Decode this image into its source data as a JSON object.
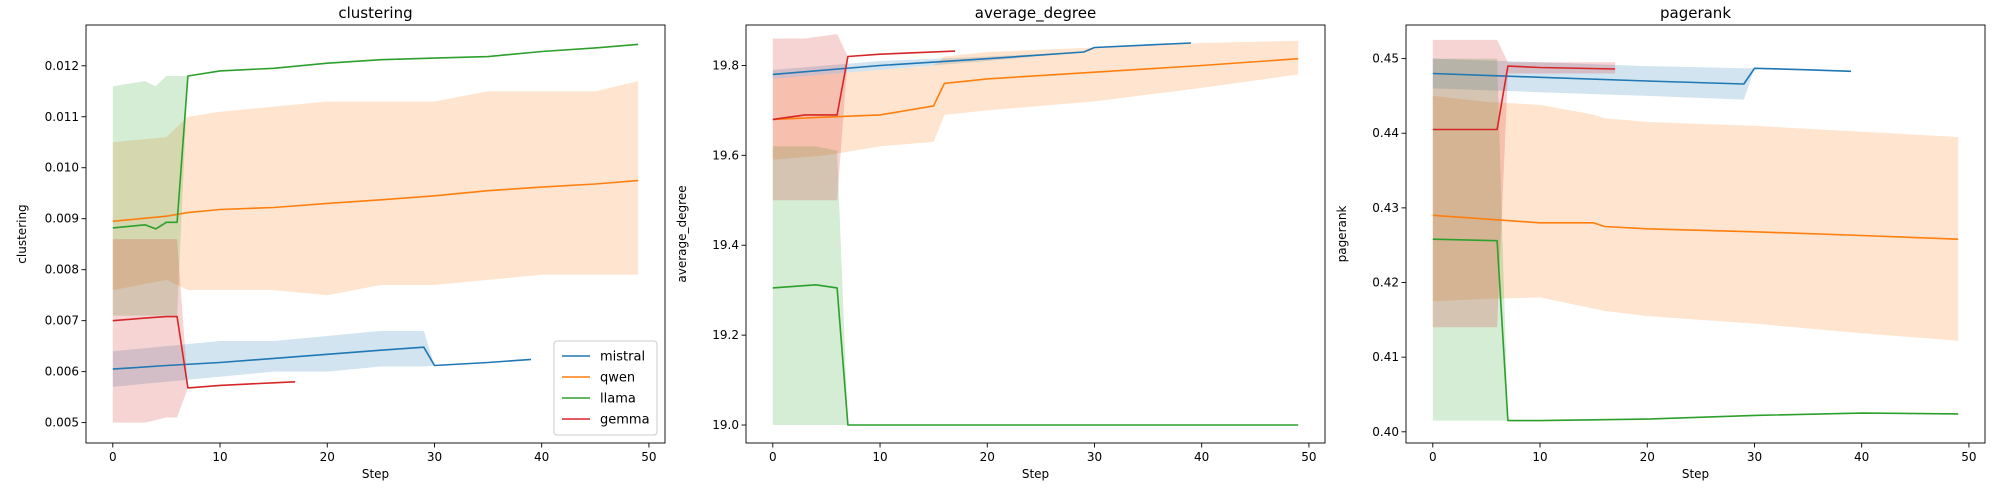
{
  "chart_data": [
    {
      "type": "line",
      "title": "clustering",
      "xlabel": "Step",
      "ylabel": "clustering",
      "xlim": [
        -2.5,
        51.5
      ],
      "ylim": [
        0.0046,
        0.0128
      ],
      "xticks": [
        0,
        10,
        20,
        30,
        40,
        50
      ],
      "yticks": [
        0.005,
        0.006,
        0.007,
        0.008,
        0.009,
        0.01,
        0.011,
        0.012
      ],
      "ytick_labels": [
        "0.005",
        "0.006",
        "0.007",
        "0.008",
        "0.009",
        "0.010",
        "0.011",
        "0.012"
      ],
      "legend": {
        "position": "lower right",
        "entries": [
          "mistral",
          "qwen",
          "llama",
          "gemma"
        ]
      },
      "series": [
        {
          "name": "mistral",
          "color": "#1f77b4",
          "x": [
            0,
            5,
            10,
            15,
            20,
            25,
            29,
            30,
            35,
            39
          ],
          "mean": [
            0.00605,
            0.00612,
            0.00618,
            0.00626,
            0.00634,
            0.00642,
            0.00648,
            0.00612,
            0.00618,
            0.00624
          ],
          "lower": [
            0.0057,
            0.0058,
            0.0059,
            0.006,
            0.006,
            0.0061,
            0.0061,
            0.00612,
            0.00618,
            0.00624
          ],
          "upper": [
            0.0064,
            0.0065,
            0.0066,
            0.0066,
            0.0067,
            0.0068,
            0.0068,
            0.00612,
            0.00618,
            0.00624
          ]
        },
        {
          "name": "qwen",
          "color": "#ff7f0e",
          "x": [
            0,
            5,
            7,
            10,
            15,
            20,
            25,
            30,
            35,
            40,
            45,
            49
          ],
          "mean": [
            0.00895,
            0.00905,
            0.00912,
            0.00918,
            0.00922,
            0.0093,
            0.00937,
            0.00945,
            0.00955,
            0.00962,
            0.00968,
            0.00975
          ],
          "lower": [
            0.0076,
            0.0078,
            0.0076,
            0.0076,
            0.0076,
            0.0075,
            0.0077,
            0.0077,
            0.0078,
            0.0079,
            0.0079,
            0.0079
          ],
          "upper": [
            0.0105,
            0.0106,
            0.011,
            0.0111,
            0.0112,
            0.0113,
            0.0113,
            0.0113,
            0.0115,
            0.0115,
            0.0115,
            0.0117
          ]
        },
        {
          "name": "llama",
          "color": "#2ca02c",
          "x": [
            0,
            3,
            4,
            5,
            6,
            7,
            10,
            15,
            20,
            25,
            30,
            35,
            40,
            45,
            49
          ],
          "mean": [
            0.00882,
            0.00888,
            0.0088,
            0.00893,
            0.00893,
            0.0118,
            0.0119,
            0.01195,
            0.01205,
            0.01212,
            0.01215,
            0.01218,
            0.01228,
            0.01235,
            0.01242
          ],
          "lower": [
            0.0071,
            0.0071,
            0.0071,
            0.0071,
            0.0071,
            0.0118,
            0.0119,
            0.01195,
            0.01205,
            0.01212,
            0.01215,
            0.01218,
            0.01228,
            0.01235,
            0.01242
          ],
          "upper": [
            0.0116,
            0.0117,
            0.0116,
            0.0118,
            0.0118,
            0.0118,
            0.0119,
            0.01195,
            0.01205,
            0.01212,
            0.01215,
            0.01218,
            0.01228,
            0.01235,
            0.01242
          ]
        },
        {
          "name": "gemma",
          "color": "#d62728",
          "x": [
            0,
            3,
            5,
            6,
            7,
            10,
            15,
            17
          ],
          "mean": [
            0.007,
            0.00705,
            0.00708,
            0.00708,
            0.00568,
            0.00573,
            0.00578,
            0.0058
          ],
          "lower": [
            0.005,
            0.005,
            0.0051,
            0.0051,
            0.00568,
            0.00573,
            0.00578,
            0.0058
          ],
          "upper": [
            0.0086,
            0.0086,
            0.0086,
            0.0086,
            0.00568,
            0.00573,
            0.00578,
            0.0058
          ]
        }
      ]
    },
    {
      "type": "line",
      "title": "average_degree",
      "xlabel": "Step",
      "ylabel": "average_degree",
      "xlim": [
        -2.5,
        51.5
      ],
      "ylim": [
        18.96,
        19.89
      ],
      "xticks": [
        0,
        10,
        20,
        30,
        40,
        50
      ],
      "yticks": [
        19.0,
        19.2,
        19.4,
        19.6,
        19.8
      ],
      "ytick_labels": [
        "19.0",
        "19.2",
        "19.4",
        "19.6",
        "19.8"
      ],
      "series": [
        {
          "name": "mistral",
          "color": "#1f77b4",
          "x": [
            0,
            10,
            20,
            29,
            30,
            39
          ],
          "mean": [
            19.78,
            19.8,
            19.815,
            19.83,
            19.84,
            19.85
          ],
          "lower": [
            19.77,
            19.79,
            19.81,
            19.83,
            19.84,
            19.85
          ],
          "upper": [
            19.79,
            19.81,
            19.82,
            19.83,
            19.84,
            19.85
          ]
        },
        {
          "name": "qwen",
          "color": "#ff7f0e",
          "x": [
            0,
            5,
            10,
            15,
            16,
            20,
            30,
            40,
            49
          ],
          "mean": [
            19.68,
            19.685,
            19.69,
            19.71,
            19.76,
            19.77,
            19.785,
            19.8,
            19.815
          ],
          "lower": [
            19.59,
            19.6,
            19.62,
            19.63,
            19.69,
            19.7,
            19.72,
            19.75,
            19.78
          ],
          "upper": [
            19.77,
            19.78,
            19.79,
            19.8,
            19.82,
            19.83,
            19.84,
            19.85,
            19.855
          ]
        },
        {
          "name": "llama",
          "color": "#2ca02c",
          "x": [
            0,
            4,
            6,
            7,
            10,
            20,
            30,
            40,
            49
          ],
          "mean": [
            19.305,
            19.312,
            19.305,
            19.0,
            19.0,
            19.0,
            19.0,
            19.0,
            19.0
          ],
          "lower": [
            19.0,
            19.0,
            19.0,
            19.0,
            19.0,
            19.0,
            19.0,
            19.0,
            19.0
          ],
          "upper": [
            19.62,
            19.62,
            19.61,
            19.0,
            19.0,
            19.0,
            19.0,
            19.0,
            19.0
          ]
        },
        {
          "name": "gemma",
          "color": "#d62728",
          "x": [
            0,
            3,
            6,
            7,
            10,
            17
          ],
          "mean": [
            19.68,
            19.69,
            19.69,
            19.82,
            19.825,
            19.832
          ],
          "lower": [
            19.5,
            19.5,
            19.5,
            19.82,
            19.825,
            19.832
          ],
          "upper": [
            19.86,
            19.86,
            19.87,
            19.82,
            19.825,
            19.832
          ]
        }
      ]
    },
    {
      "type": "line",
      "title": "pagerank",
      "xlabel": "Step",
      "ylabel": "pagerank",
      "xlim": [
        -2.5,
        51.5
      ],
      "ylim": [
        0.3985,
        0.4545
      ],
      "xticks": [
        0,
        10,
        20,
        30,
        40,
        50
      ],
      "yticks": [
        0.4,
        0.41,
        0.42,
        0.43,
        0.44,
        0.45
      ],
      "ytick_labels": [
        "0.40",
        "0.41",
        "0.42",
        "0.43",
        "0.44",
        "0.45"
      ],
      "series": [
        {
          "name": "mistral",
          "color": "#1f77b4",
          "x": [
            0,
            10,
            20,
            29,
            30,
            35,
            39
          ],
          "mean": [
            0.448,
            0.4475,
            0.447,
            0.4466,
            0.4487,
            0.4485,
            0.4483
          ],
          "lower": [
            0.446,
            0.4455,
            0.445,
            0.4445,
            0.4487,
            0.4485,
            0.4483
          ],
          "upper": [
            0.45,
            0.4495,
            0.449,
            0.4487,
            0.4487,
            0.4485,
            0.4483
          ]
        },
        {
          "name": "qwen",
          "color": "#ff7f0e",
          "x": [
            0,
            5,
            10,
            15,
            16,
            20,
            30,
            40,
            49
          ],
          "mean": [
            0.429,
            0.4285,
            0.428,
            0.428,
            0.4275,
            0.4272,
            0.4268,
            0.4263,
            0.4258
          ],
          "lower": [
            0.4175,
            0.4178,
            0.418,
            0.4165,
            0.4162,
            0.4155,
            0.4145,
            0.4132,
            0.4122
          ],
          "upper": [
            0.445,
            0.4442,
            0.4438,
            0.4425,
            0.442,
            0.4415,
            0.441,
            0.4402,
            0.4395
          ]
        },
        {
          "name": "llama",
          "color": "#2ca02c",
          "x": [
            0,
            6,
            7,
            10,
            20,
            30,
            40,
            49
          ],
          "mean": [
            0.4258,
            0.4256,
            0.4015,
            0.4015,
            0.4017,
            0.4022,
            0.4025,
            0.4024
          ],
          "lower": [
            0.4015,
            0.4015,
            0.4015,
            0.4015,
            0.4017,
            0.4022,
            0.4025,
            0.4024
          ],
          "upper": [
            0.45,
            0.45,
            0.4015,
            0.4015,
            0.4017,
            0.4022,
            0.4025,
            0.4024
          ]
        },
        {
          "name": "gemma",
          "color": "#d62728",
          "x": [
            0,
            3,
            6,
            7,
            10,
            17
          ],
          "mean": [
            0.4405,
            0.4405,
            0.4405,
            0.449,
            0.4488,
            0.4486
          ],
          "lower": [
            0.414,
            0.414,
            0.414,
            0.448,
            0.448,
            0.448
          ],
          "upper": [
            0.4525,
            0.4525,
            0.4525,
            0.4495,
            0.4495,
            0.4495
          ]
        }
      ]
    }
  ]
}
